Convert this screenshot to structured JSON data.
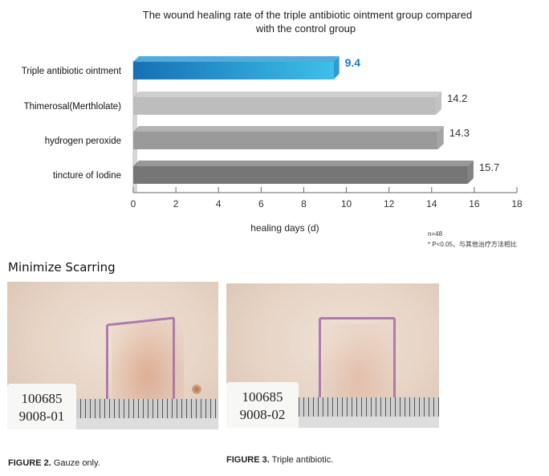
{
  "chart_data": {
    "type": "bar",
    "orientation": "horizontal",
    "title": "The wound healing rate of the triple antibiotic ointment group compared with  the control group",
    "title_lines": [
      "The wound healing rate of the triple antibiotic ointment group compared",
      "with  the control group"
    ],
    "categories": [
      "Triple antibiotic ointment",
      "Thimerosal(Merthlolate)",
      "hydrogen peroxide",
      "tincture of Iodine"
    ],
    "values": [
      9.4,
      14.2,
      14.3,
      15.7
    ],
    "data_labels": [
      "9.4",
      "14.2",
      "14.3",
      "15.7"
    ],
    "bar_colors": [
      "#1a8fd0",
      "#bdbdbd",
      "#9a9a9a",
      "#767676"
    ],
    "label_colors": [
      "#1a7cc0",
      "#333333",
      "#333333",
      "#333333"
    ],
    "xlabel": "healing days (d)",
    "xlim": [
      0,
      18
    ],
    "xticks": [
      "0",
      "2",
      "4",
      "6",
      "8",
      "10",
      "12",
      "14",
      "16",
      "18"
    ],
    "grid": false,
    "notes": [
      "n=48",
      "* P<0.05，与其他治疗方法相比"
    ]
  },
  "section_title": "Minimize Scarring",
  "figures": [
    {
      "label_lines": [
        "100685",
        "9008-01"
      ],
      "caption_bold": "FIGURE 2.",
      "caption_text": " Gauze only."
    },
    {
      "label_lines": [
        "100685",
        "9008-02"
      ],
      "caption_bold": "FIGURE 3.",
      "caption_text": " Triple antibiotic."
    }
  ]
}
